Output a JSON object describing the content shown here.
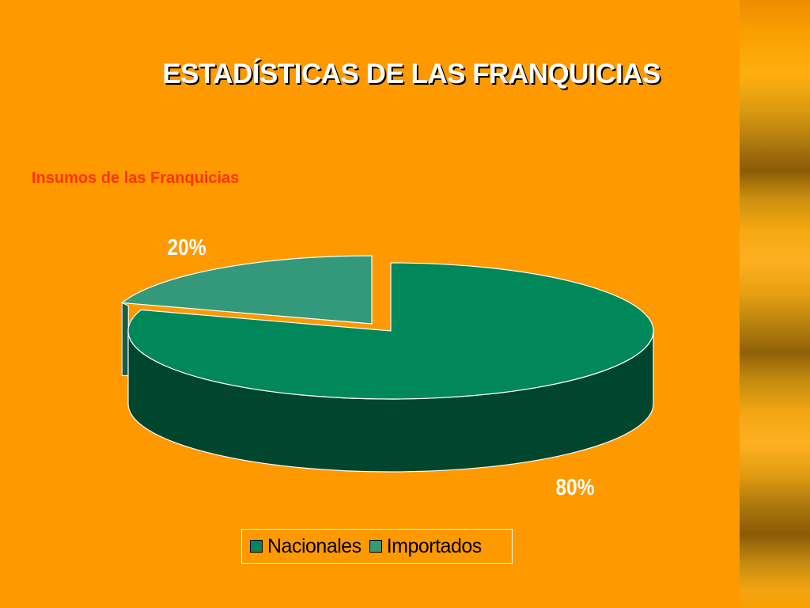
{
  "slide": {
    "title": "ESTADÍSTICAS DE LAS FRANQUICIAS",
    "subtitle": "Insumos de las Franquicias"
  },
  "colors": {
    "background": "#FF9900",
    "title": "#FFFFFF",
    "subtitle": "#FF3300",
    "nacionales_top": "#00875A",
    "nacionales_side": "#00452D",
    "importados_top": "#33997A",
    "importados_side": "#1B5C47"
  },
  "chart_data": {
    "type": "pie",
    "title": "",
    "labels": [
      "Nacionales",
      "Importados"
    ],
    "values": [
      80,
      20
    ],
    "data_labels": [
      "80%",
      "20%"
    ],
    "legend": {
      "position": "bottom",
      "entries": [
        "Nacionales",
        "Importados"
      ]
    },
    "exploded": [
      "Importados"
    ],
    "style": "3d"
  }
}
